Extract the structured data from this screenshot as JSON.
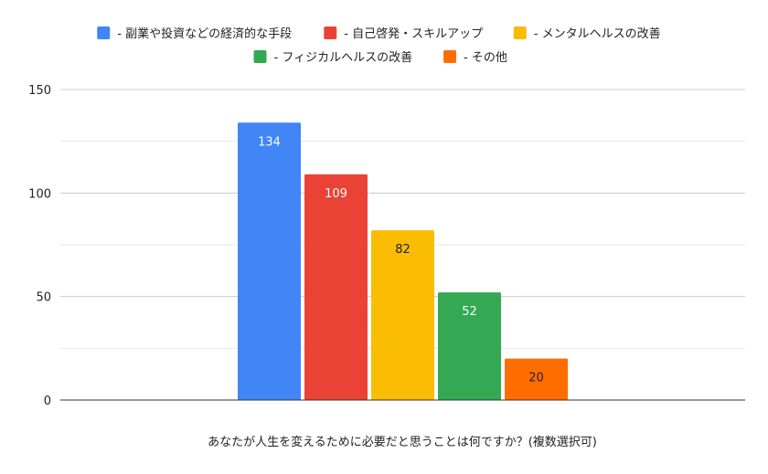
{
  "chart_data": {
    "type": "bar",
    "title": "",
    "xlabel": "あなたが人生を変えるために必要だと思うことは何ですか？(複数選択可)",
    "ylabel": "",
    "ylim": [
      0,
      150
    ],
    "yticks": [
      0,
      50,
      100,
      150
    ],
    "grid": true,
    "legend_position": "top",
    "series": [
      {
        "name": "- 副業や投資などの経済的な手段",
        "value": 134,
        "label": "134",
        "color": "#4285F4",
        "label_color": "#ffffff"
      },
      {
        "name": "- 自己啓発・スキルアップ",
        "value": 109,
        "label": "109",
        "color": "#EA4335",
        "label_color": "#ffffff"
      },
      {
        "name": "- メンタルヘルスの改善",
        "value": 82,
        "label": "82",
        "color": "#FBBC04",
        "label_color": "#222222"
      },
      {
        "name": "- フィジカルヘルスの改善",
        "value": 52,
        "label": "52",
        "color": "#34A853",
        "label_color": "#ffffff"
      },
      {
        "name": "- その他",
        "value": 20,
        "label": "20",
        "color": "#FF6D01",
        "label_color": "#222222"
      }
    ]
  }
}
